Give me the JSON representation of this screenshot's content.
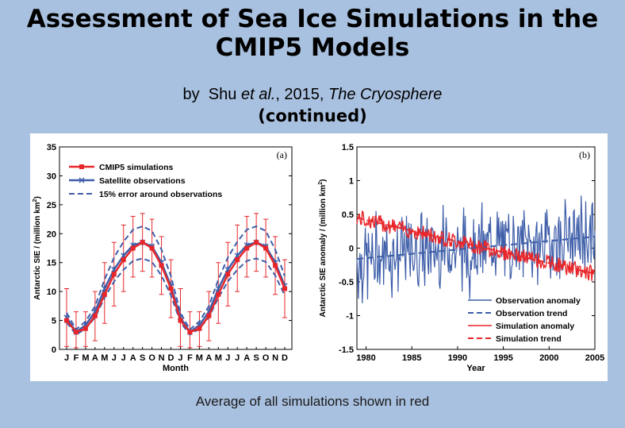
{
  "title_line1": "Assessment of Sea Ice Simulations in the",
  "title_line2": "CMIP5 Models",
  "byline": {
    "prefix": "by",
    "author": "Shu",
    "etal": "et al.",
    "year": ", 2015, ",
    "journal": "The Cryosphere"
  },
  "continued": "(continued)",
  "caption": "Average of all simulations shown in red",
  "colors": {
    "red": "#e8262a",
    "blue": "#3e5ea9",
    "background": "#a9c1e0"
  },
  "chart_data": [
    {
      "type": "line",
      "panel_label": "(a)",
      "xlabel": "Month",
      "ylabel": "Antarctic SIE / (million km",
      "ylabel_sup": "2",
      "ylabel_end": ")",
      "ylim": [
        0,
        35
      ],
      "yticks": [
        0,
        5,
        10,
        15,
        20,
        25,
        30,
        35
      ],
      "categories": [
        "J",
        "F",
        "M",
        "A",
        "M",
        "J",
        "J",
        "A",
        "S",
        "O",
        "N",
        "D",
        "J",
        "F",
        "M",
        "A",
        "M",
        "J",
        "J",
        "A",
        "S",
        "O",
        "N",
        "D"
      ],
      "legend": [
        "CMIP5 simulations",
        "Satellite observations",
        "15% error around observations"
      ],
      "series": [
        {
          "name": "CMIP5 simulations",
          "values": [
            5.0,
            3.0,
            3.6,
            5.8,
            9.5,
            13.0,
            15.5,
            17.5,
            18.5,
            17.5,
            14.5,
            10.5,
            5.0,
            3.0,
            3.6,
            5.8,
            9.5,
            13.0,
            15.5,
            17.5,
            18.5,
            17.5,
            14.5,
            10.5
          ],
          "error_low": [
            0.5,
            0.3,
            0.5,
            1.5,
            4.5,
            7.5,
            10.0,
            12.5,
            13.5,
            12.5,
            9.5,
            5.5,
            0.5,
            0.3,
            0.5,
            1.5,
            4.5,
            7.5,
            10.0,
            12.5,
            13.5,
            12.5,
            9.5,
            5.5
          ],
          "error_high": [
            10.5,
            6.5,
            6.5,
            10.0,
            15.0,
            18.5,
            21.5,
            23.0,
            23.5,
            22.5,
            19.5,
            15.5,
            10.5,
            6.5,
            6.5,
            10.0,
            15.0,
            18.5,
            21.5,
            23.0,
            23.5,
            22.5,
            19.5,
            15.5
          ]
        },
        {
          "name": "Satellite observations",
          "values": [
            5.5,
            3.0,
            4.2,
            6.5,
            10.5,
            13.8,
            16.2,
            18.0,
            18.5,
            17.8,
            15.0,
            11.0,
            5.5,
            3.0,
            4.2,
            6.5,
            10.5,
            13.8,
            16.2,
            18.0,
            18.5,
            17.8,
            15.0,
            11.0
          ]
        }
      ]
    },
    {
      "type": "line",
      "panel_label": "(b)",
      "xlabel": "Year",
      "ylabel": "Antarctic SIE anomaly / (million km",
      "ylabel_sup": "2",
      "ylabel_end": ")",
      "xlim": [
        1979,
        2005
      ],
      "ylim": [
        -1.5,
        1.5
      ],
      "xticks": [
        1980,
        1985,
        1990,
        1995,
        2000,
        2005
      ],
      "yticks": [
        -1.5,
        -1,
        -0.5,
        0,
        0.5,
        1,
        1.5
      ],
      "legend": [
        "Observation anomaly",
        "Observation trend",
        "Simulation anomaly",
        "Simulation trend"
      ],
      "observation_trend": {
        "start": -0.16,
        "end": 0.17
      },
      "simulation_trend": {
        "start": 0.45,
        "end": -0.38
      },
      "observation_anomaly_amplitude": 0.55,
      "simulation_anomaly_amplitude": 0.12
    }
  ]
}
